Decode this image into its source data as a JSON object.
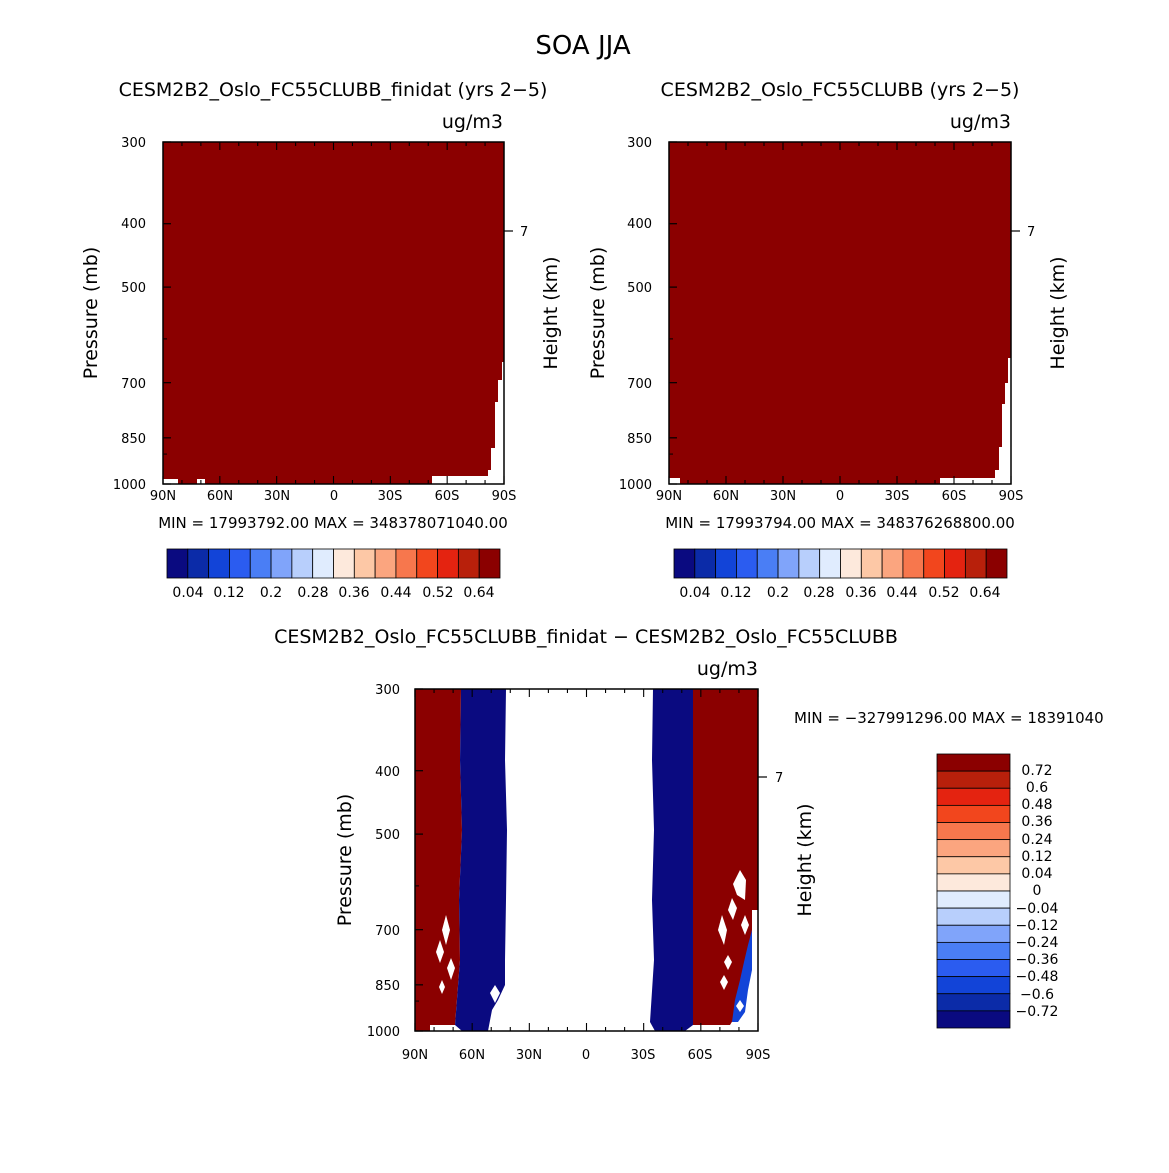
{
  "figure": {
    "title": "SOA JJA",
    "units": "ug/m3"
  },
  "chart_data": [
    {
      "type": "heatmap",
      "id": "top-left",
      "title": "CESM2B2_Oslo_FC55CLUBB_finidat (yrs 2-5)",
      "units": "ug/m3",
      "ylabel": "Pressure (mb)",
      "ylabel_right": "Height (km)",
      "x_ticks": [
        "90N",
        "60N",
        "30N",
        "0",
        "30S",
        "60S",
        "90S"
      ],
      "y_ticks": [
        "300",
        "400",
        "500",
        "700",
        "850",
        "1000"
      ],
      "y_tick_values": [
        300,
        400,
        500,
        700,
        850,
        1000
      ],
      "ylim": [
        300,
        1000
      ],
      "xlim": [
        90,
        -90
      ],
      "right_ticks": [
        "7"
      ],
      "min_max_text": "MIN = 17993792.00   MAX = 348378071040.00",
      "colorbar_colors": [
        "#0a0a80",
        "#0b2ba8",
        "#1244d8",
        "#2b5cf0",
        "#4a7ef5",
        "#80a4fa",
        "#b8cffc",
        "#e0ecfe",
        "#fde9dc",
        "#fdc8a6",
        "#fba57f",
        "#f7774d",
        "#f2461d",
        "#e42310",
        "#b8200b",
        "#8b0000"
      ],
      "colorbar_labels": [
        "0.04",
        "0.12",
        "0.2",
        "0.28",
        "0.36",
        "0.44",
        "0.52",
        "0.64"
      ],
      "field": "saturated (all cells exceed max contour level 0.64)"
    },
    {
      "type": "heatmap",
      "id": "top-right",
      "title": "CESM2B2_Oslo_FC55CLUBB (yrs 2-5)",
      "units": "ug/m3",
      "ylabel": "Pressure (mb)",
      "ylabel_right": "Height (km)",
      "x_ticks": [
        "90N",
        "60N",
        "30N",
        "0",
        "30S",
        "60S",
        "90S"
      ],
      "y_ticks": [
        "300",
        "400",
        "500",
        "700",
        "850",
        "1000"
      ],
      "y_tick_values": [
        300,
        400,
        500,
        700,
        850,
        1000
      ],
      "ylim": [
        300,
        1000
      ],
      "xlim": [
        90,
        -90
      ],
      "right_ticks": [
        "7"
      ],
      "min_max_text": "MIN = 17993794.00   MAX = 348376268800.00",
      "colorbar_colors": [
        "#0a0a80",
        "#0b2ba8",
        "#1244d8",
        "#2b5cf0",
        "#4a7ef5",
        "#80a4fa",
        "#b8cffc",
        "#e0ecfe",
        "#fde9dc",
        "#fdc8a6",
        "#fba57f",
        "#f7774d",
        "#f2461d",
        "#e42310",
        "#b8200b",
        "#8b0000"
      ],
      "colorbar_labels": [
        "0.04",
        "0.12",
        "0.2",
        "0.28",
        "0.36",
        "0.44",
        "0.52",
        "0.64"
      ],
      "field": "saturated (all cells exceed max contour level 0.64)"
    },
    {
      "type": "heatmap",
      "id": "bottom-diff",
      "title": "CESM2B2_Oslo_FC55CLUBB_finidat - CESM2B2_Oslo_FC55CLUBB",
      "units": "ug/m3",
      "ylabel": "Pressure (mb)",
      "ylabel_right": "Height (km)",
      "x_ticks": [
        "90N",
        "60N",
        "30N",
        "0",
        "30S",
        "60S",
        "90S"
      ],
      "y_ticks": [
        "300",
        "400",
        "500",
        "700",
        "850",
        "1000"
      ],
      "y_tick_values": [
        300,
        400,
        500,
        700,
        850,
        1000
      ],
      "ylim": [
        300,
        1000
      ],
      "xlim": [
        90,
        -90
      ],
      "right_ticks": [
        "7"
      ],
      "min_max_text": "MIN = -327991296.00   MAX = 18391040",
      "colorbar_colors": [
        "#8b0000",
        "#b8200b",
        "#e42310",
        "#f2461d",
        "#f7774d",
        "#fba57f",
        "#fdc8a6",
        "#fde9dc",
        "#e0ecfe",
        "#b8cffc",
        "#80a4fa",
        "#4a7ef5",
        "#2b5cf0",
        "#1244d8",
        "#0b2ba8",
        "#0a0a80"
      ],
      "colorbar_labels": [
        "0.72",
        "0.6",
        "0.48",
        "0.36",
        "0.24",
        "0.12",
        "0.04",
        "0",
        "-0.04",
        "-0.12",
        "-0.24",
        "-0.36",
        "-0.48",
        "-0.6",
        "-0.72"
      ],
      "bands": [
        {
          "lat_from": 90,
          "lat_to": 66,
          "level": "max"
        },
        {
          "lat_from": 66,
          "lat_to": 42,
          "level": "min"
        },
        {
          "lat_from": 42,
          "lat_to": -35,
          "level": "zero"
        },
        {
          "lat_from": -35,
          "lat_to": -56,
          "level": "min"
        },
        {
          "lat_from": -56,
          "lat_to": -90,
          "level": "max"
        }
      ]
    }
  ]
}
